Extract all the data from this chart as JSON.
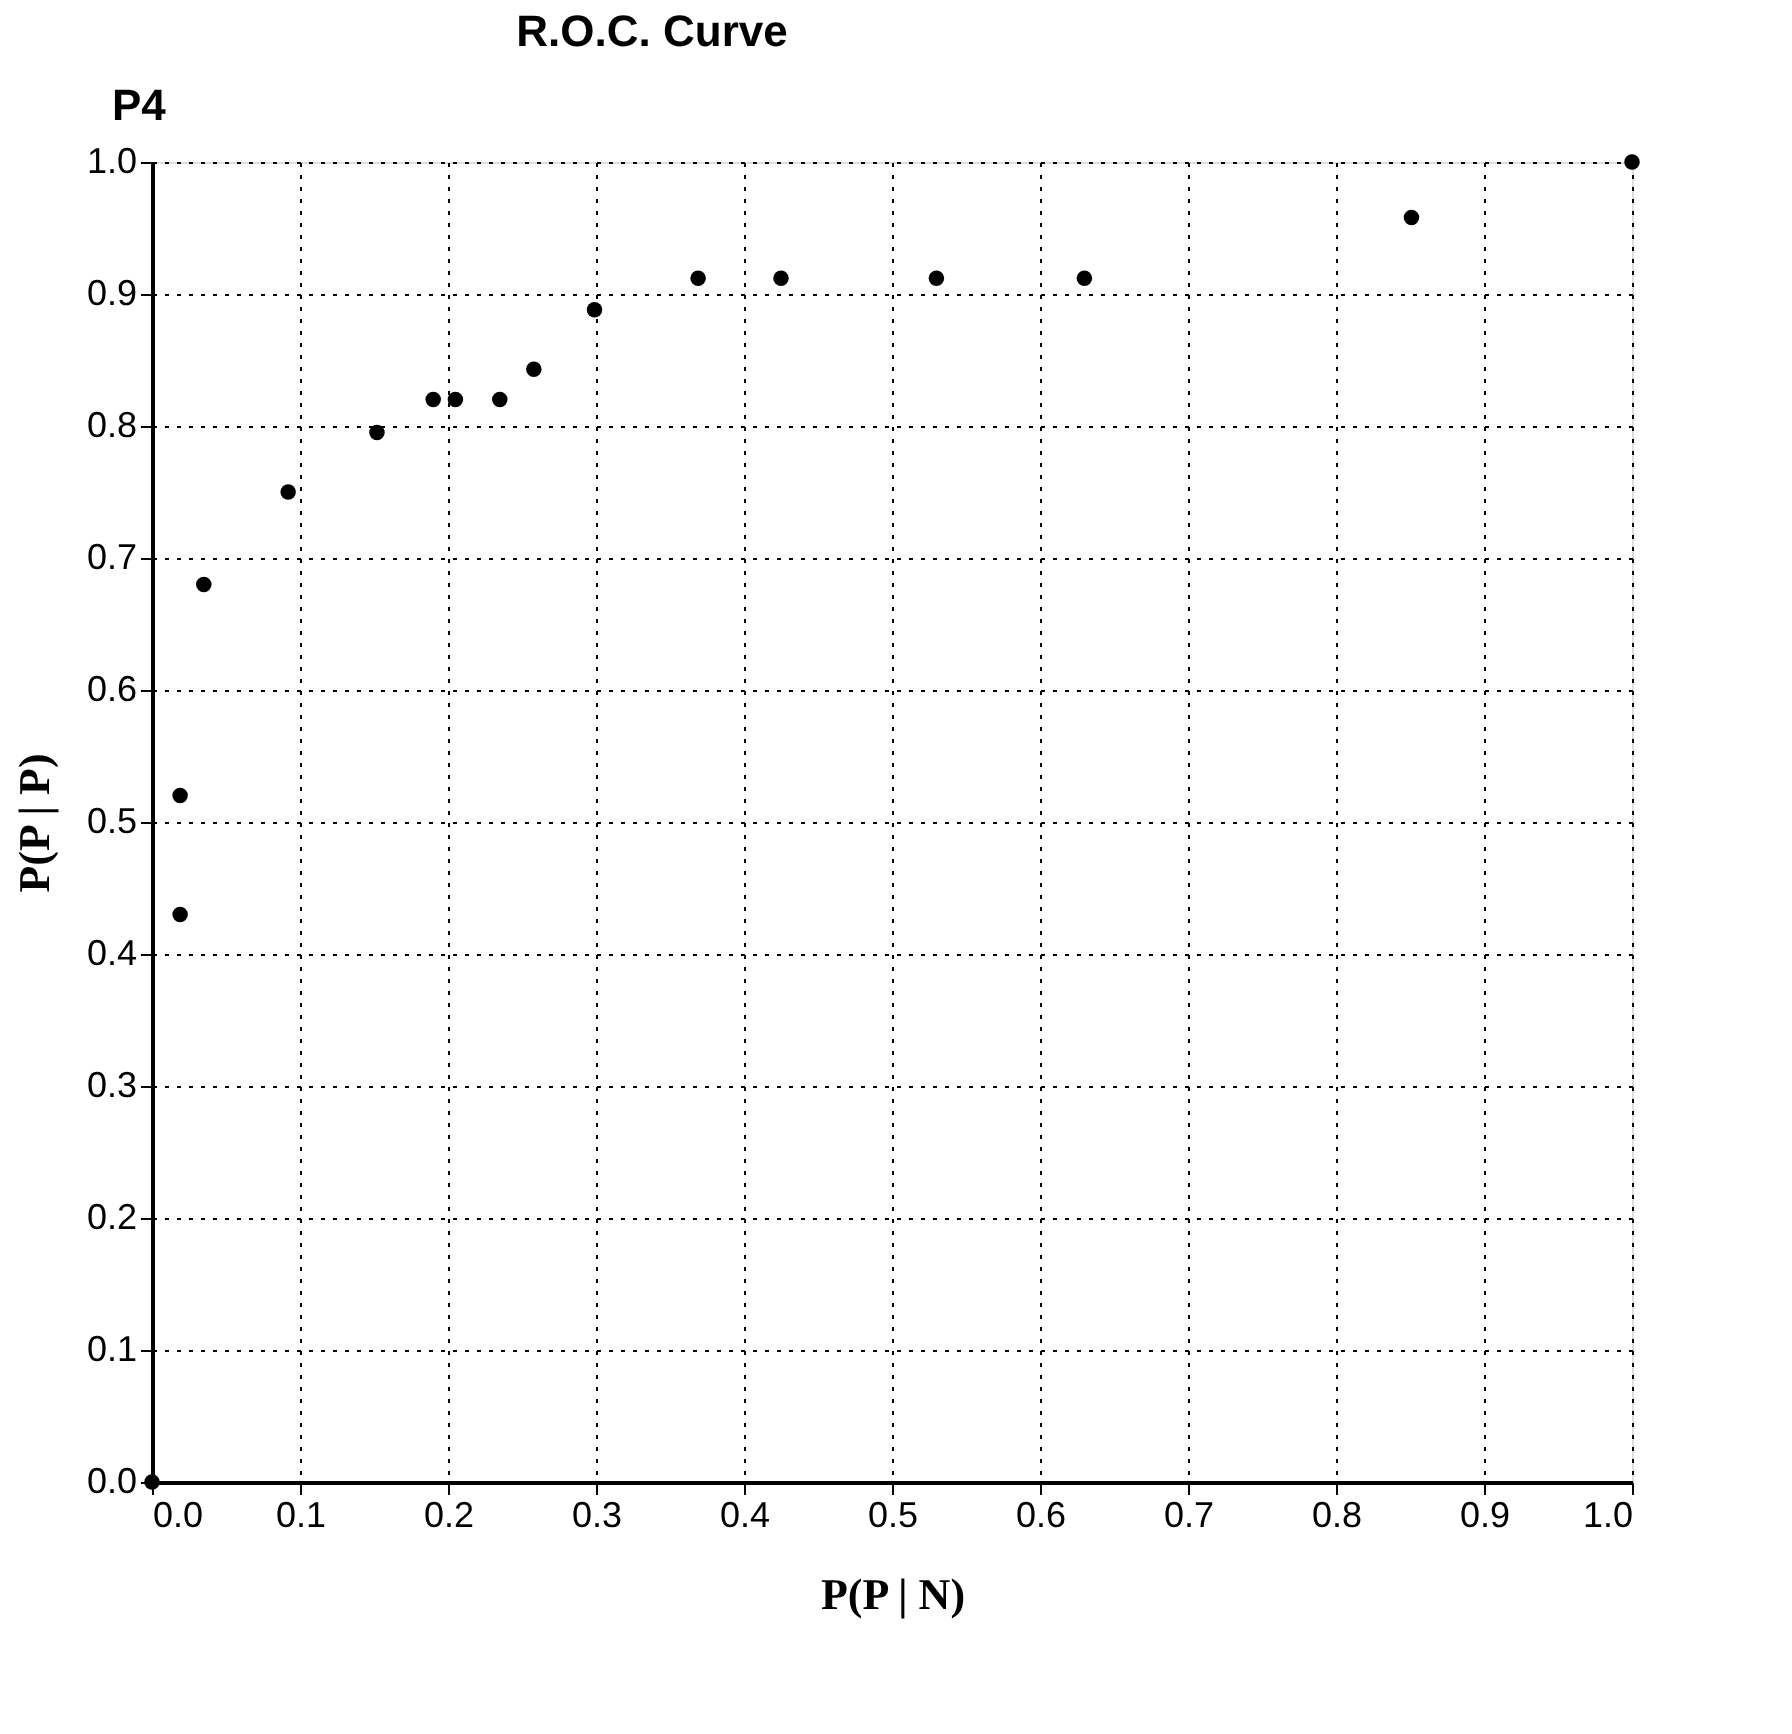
{
  "chart_data": {
    "type": "scatter",
    "title": "R.O.C. Curve",
    "annotations": [
      "P4"
    ],
    "xlabel": "P(P | N)",
    "ylabel": "P(P | P)",
    "x": [
      0,
      0.019,
      0.019,
      0.035,
      0.092,
      0.152,
      0.19,
      0.205,
      0.235,
      0.258,
      0.299,
      0.369,
      0.425,
      0.53,
      0.63,
      0.851,
      1.0
    ],
    "series": [
      {
        "color": "#000000",
        "values": [
          0,
          0.52,
          0.43,
          0.68,
          0.75,
          0.795,
          0.82,
          0.82,
          0.82,
          0.843,
          0.888,
          0.912,
          0.912,
          0.912,
          0.912,
          0.958,
          1.0
        ]
      }
    ],
    "xlim": [
      0,
      1
    ],
    "ylim": [
      0,
      1
    ],
    "xticks": [
      {
        "value": 0,
        "label": "0.0"
      },
      0.1,
      0.2,
      0.3,
      0.4,
      0.5,
      0.6,
      0.7,
      0.8,
      0.9,
      {
        "value": 1,
        "label": "1.0"
      }
    ],
    "yticks": [
      {
        "value": 0,
        "label": "0.0"
      },
      0.1,
      0.2,
      0.3,
      0.4,
      0.5,
      0.6,
      0.7,
      0.8,
      0.9,
      {
        "value": 1,
        "label": "1.0"
      }
    ],
    "grid": true,
    "marker": "circle"
  }
}
